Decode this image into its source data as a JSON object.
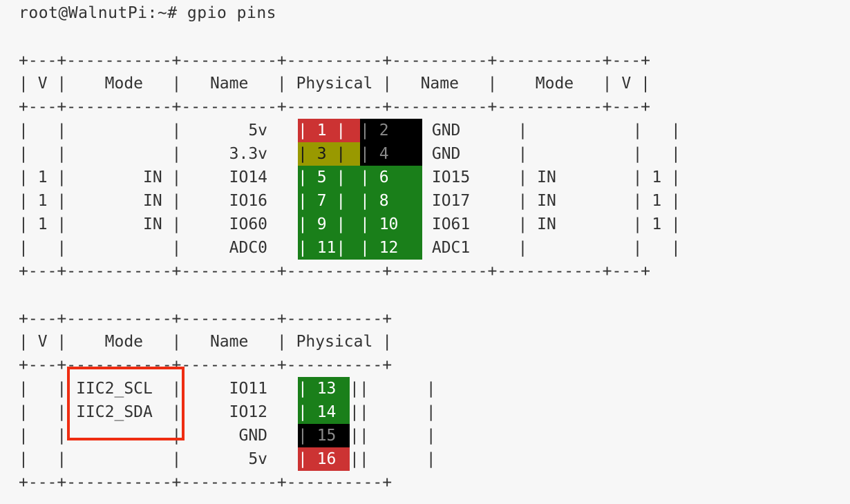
{
  "prompt": "root@WalnutPi:~# gpio pins",
  "table1": {
    "border": "+---+-----------+----------+----------+----------+-----------+---+",
    "header": "| V |    Mode   |   Name   | Physical |   Name   |    Mode   | V |",
    "rows": [
      {
        "left": "|   |           |       5v ",
        "pin_l": "| 1 |",
        "pin_r": "| 2  ",
        "right": " GND      |           |   |"
      },
      {
        "left": "|   |           |     3.3v ",
        "pin_l": "| 3 |",
        "pin_r": "| 4  ",
        "right": " GND      |           |   |"
      },
      {
        "left": "| 1 |        IN |     IO14 ",
        "pin_l": "| 5 |",
        "pin_r": "| 6  ",
        "right": " IO15     | IN        | 1 |"
      },
      {
        "left": "| 1 |        IN |     IO16 ",
        "pin_l": "| 7 |",
        "pin_r": "| 8  ",
        "right": " IO17     | IN        | 1 |"
      },
      {
        "left": "| 1 |        IN |     IO60 ",
        "pin_l": "| 9 |",
        "pin_r": "| 10 ",
        "right": " IO61     | IN        | 1 |"
      },
      {
        "left": "|   |           |     ADC0 ",
        "pin_l": "| 11|",
        "pin_r": "| 12 ",
        "right": " ADC1     |           |   |"
      }
    ]
  },
  "table2": {
    "border": "+---+-----------+----------+----------+",
    "header": "| V |    Mode   |   Name   | Physical |",
    "rows": [
      {
        "left": "|   | IIC2_SCL  |     IO11 ",
        "pin": "| 13 ",
        "right": "||      |"
      },
      {
        "left": "|   | IIC2_SDA  |     IO12 ",
        "pin": "| 14 ",
        "right": "||      |"
      },
      {
        "left": "|   |           |      GND ",
        "pin": "| 15 ",
        "right": "||      |"
      },
      {
        "left": "|   |           |       5v ",
        "pin": "| 16 ",
        "right": "||      |"
      }
    ]
  },
  "colors": {
    "power_5v": "#cc3333",
    "power_3v3": "#999900",
    "ground": "#000000",
    "gpio": "#1a7f1a",
    "highlight": "#ee2d12"
  }
}
